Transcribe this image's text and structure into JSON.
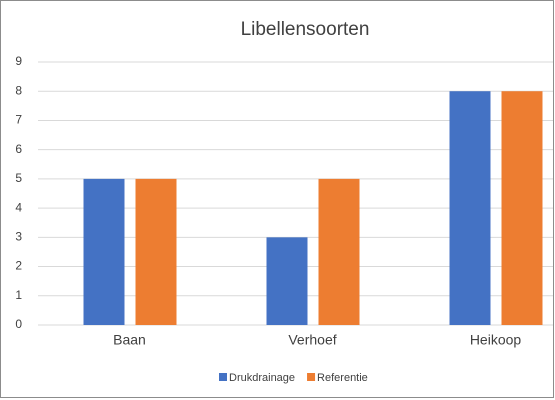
{
  "chart_data": {
    "type": "bar",
    "title": "Libellensoorten",
    "categories": [
      "Baan",
      "Verhoef",
      "Heikoop"
    ],
    "series": [
      {
        "name": "Drukdrainage",
        "color": "#4472c4",
        "values": [
          5,
          3,
          8
        ]
      },
      {
        "name": "Referentie",
        "color": "#ed7d31",
        "values": [
          5,
          5,
          8
        ]
      }
    ],
    "ylim": [
      0,
      9
    ],
    "yticks": [
      0,
      1,
      2,
      3,
      4,
      5,
      6,
      7,
      8,
      9
    ],
    "grid": true,
    "legend": "bottom"
  }
}
